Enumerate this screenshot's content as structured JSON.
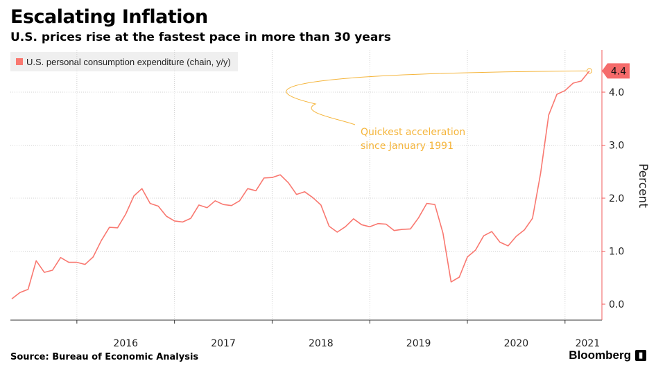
{
  "header": {
    "title": "Escalating Inflation",
    "subtitle": "U.S. prices rise at the fastest pace in more than 30 years"
  },
  "footer": {
    "source": "Source:  Bureau of Economic Analysis",
    "brand": "Bloomberg",
    "brand_icon": "bloomberg-terminal-icon"
  },
  "colors": {
    "series": "#f97870",
    "annotation": "#f5b53b",
    "axis": "#f25a5a",
    "legend_bg": "#efefef",
    "last_label_bg": "#f56b6b"
  },
  "chart_data": {
    "type": "line",
    "title": "Escalating Inflation",
    "ylabel": "Percent",
    "xlabel": "",
    "ylim": [
      -0.3,
      4.9
    ],
    "yticks": [
      0.0,
      1.0,
      2.0,
      3.0,
      4.0
    ],
    "ytick_labels": [
      "0.0",
      "1.0",
      "2.0",
      "3.0",
      "4.0"
    ],
    "x_year_labels": [
      "2016",
      "2017",
      "2018",
      "2019",
      "2020",
      "2021"
    ],
    "legend": "U.S. personal consumption expenditure (chain, y/y)",
    "last_value_label": "4.4",
    "annotation": {
      "lines": [
        "Quickest acceleration",
        "since January 1991"
      ],
      "target_value": 4.4
    },
    "series": [
      {
        "name": "U.S. personal consumption expenditure (chain, y/y)",
        "start": "2015-05",
        "values": [
          0.1,
          0.22,
          0.28,
          0.82,
          0.6,
          0.64,
          0.88,
          0.79,
          0.79,
          0.75,
          0.89,
          1.2,
          1.45,
          1.44,
          1.7,
          2.04,
          2.18,
          1.9,
          1.85,
          1.66,
          1.57,
          1.55,
          1.62,
          1.87,
          1.82,
          1.95,
          1.88,
          1.86,
          1.95,
          2.18,
          2.14,
          2.38,
          2.39,
          2.44,
          2.29,
          2.07,
          2.12,
          2.01,
          1.87,
          1.47,
          1.36,
          1.46,
          1.61,
          1.5,
          1.46,
          1.52,
          1.51,
          1.39,
          1.41,
          1.42,
          1.63,
          1.9,
          1.88,
          1.34,
          0.42,
          0.51,
          0.89,
          1.02,
          1.29,
          1.37,
          1.17,
          1.1,
          1.28,
          1.4,
          1.62,
          2.47,
          3.57,
          3.96,
          4.03,
          4.17,
          4.21,
          4.4
        ]
      }
    ]
  }
}
